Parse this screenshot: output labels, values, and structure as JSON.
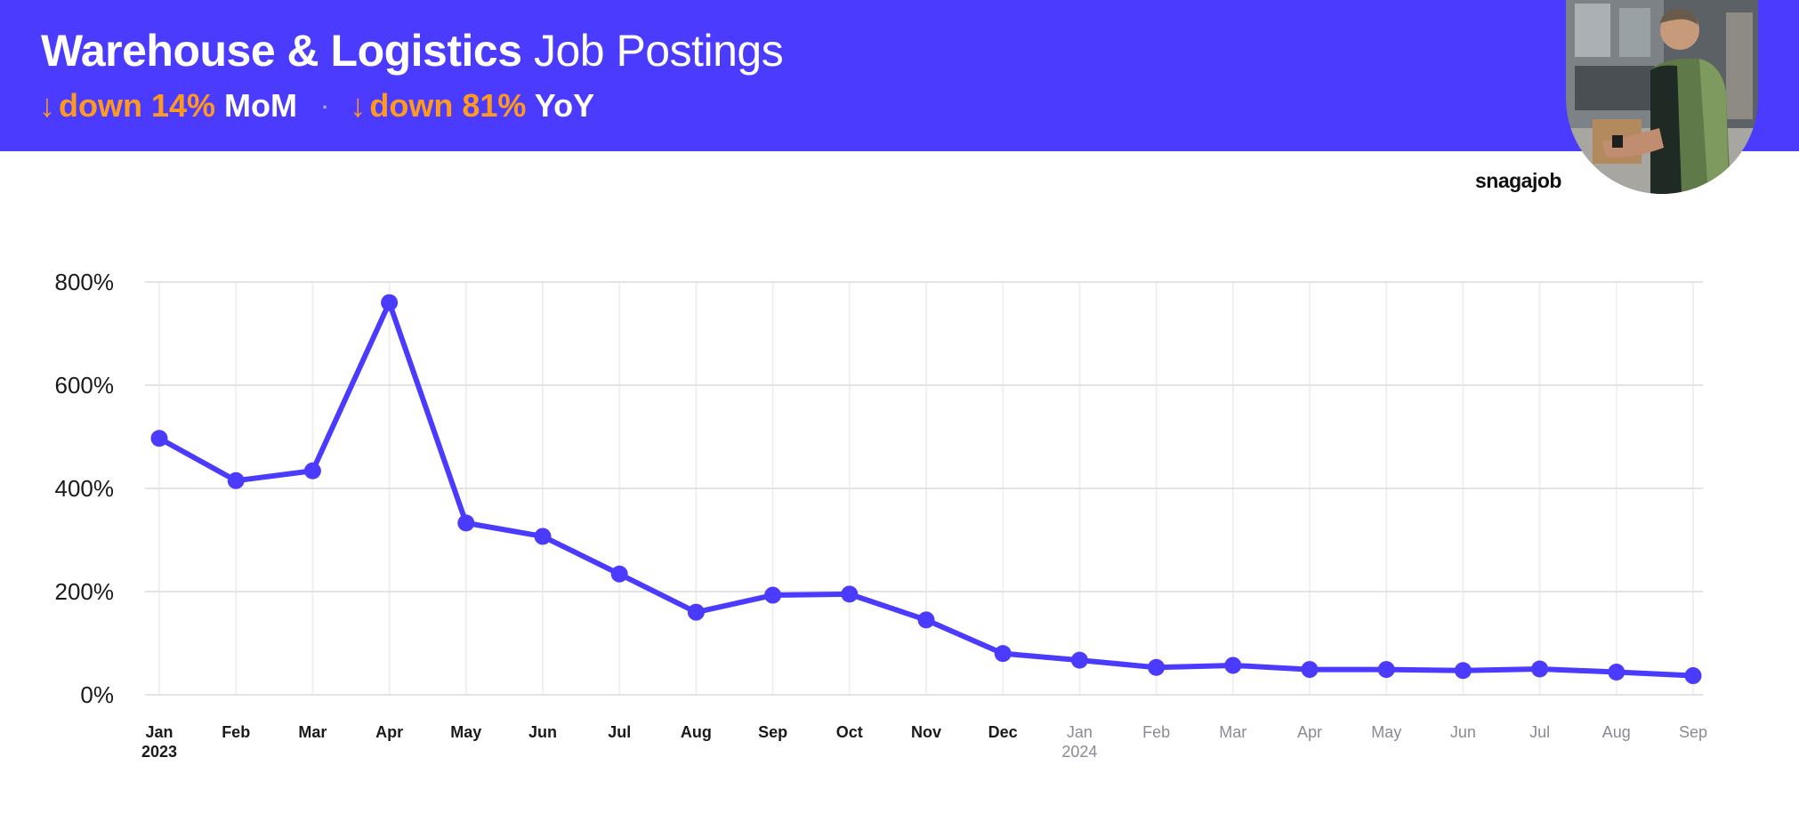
{
  "header": {
    "title_bold": "Warehouse & Logistics",
    "title_rest": "Job Postings",
    "mom": {
      "value": "down 14%",
      "label": "MoM"
    },
    "yoy": {
      "value": "down 81%",
      "label": "YoY"
    },
    "separator": "·",
    "arrow": "↓"
  },
  "brand": "snagajob",
  "colors": {
    "banner": "#4b3bff",
    "accent": "#ff9a1f",
    "line": "#4b3bff"
  },
  "chart_data": {
    "type": "line",
    "x": [
      "Jan",
      "Feb",
      "Mar",
      "Apr",
      "May",
      "Jun",
      "Jul",
      "Aug",
      "Sep",
      "Oct",
      "Nov",
      "Dec",
      "Jan",
      "Feb",
      "Mar",
      "Apr",
      "May",
      "Jun",
      "Jul",
      "Aug",
      "Sep"
    ],
    "year_labels": [
      {
        "index": 0,
        "label": "2023"
      },
      {
        "index": 12,
        "label": "2024"
      }
    ],
    "muted_from_index": 12,
    "series": [
      {
        "values": [
          497,
          415,
          434,
          760,
          333,
          307,
          234,
          160,
          193,
          195,
          145,
          80,
          67,
          53,
          57,
          49,
          49,
          47,
          50,
          44,
          37
        ]
      }
    ],
    "yticks": [
      0,
      200,
      400,
      600,
      800
    ],
    "ytick_suffix": "%",
    "ylim": [
      0,
      800
    ],
    "grid": true,
    "legend": "none"
  }
}
